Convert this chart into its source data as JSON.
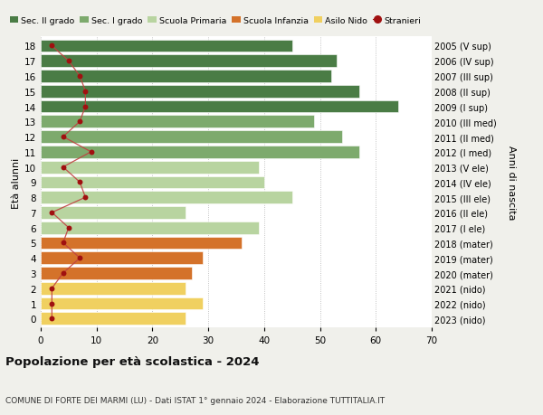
{
  "ages": [
    18,
    17,
    16,
    15,
    14,
    13,
    12,
    11,
    10,
    9,
    8,
    7,
    6,
    5,
    4,
    3,
    2,
    1,
    0
  ],
  "right_labels": [
    "2005 (V sup)",
    "2006 (IV sup)",
    "2007 (III sup)",
    "2008 (II sup)",
    "2009 (I sup)",
    "2010 (III med)",
    "2011 (II med)",
    "2012 (I med)",
    "2013 (V ele)",
    "2014 (IV ele)",
    "2015 (III ele)",
    "2016 (II ele)",
    "2017 (I ele)",
    "2018 (mater)",
    "2019 (mater)",
    "2020 (mater)",
    "2021 (nido)",
    "2022 (nido)",
    "2023 (nido)"
  ],
  "bar_values": [
    45,
    53,
    52,
    57,
    64,
    49,
    54,
    57,
    39,
    40,
    45,
    26,
    39,
    36,
    29,
    27,
    26,
    29,
    26
  ],
  "stranieri_values": [
    2,
    5,
    7,
    8,
    8,
    7,
    4,
    9,
    4,
    7,
    8,
    2,
    5,
    4,
    7,
    4,
    2,
    2,
    2
  ],
  "bar_colors": [
    "#4a7c45",
    "#4a7c45",
    "#4a7c45",
    "#4a7c45",
    "#4a7c45",
    "#7daa6d",
    "#7daa6d",
    "#7daa6d",
    "#b8d4a0",
    "#b8d4a0",
    "#b8d4a0",
    "#b8d4a0",
    "#b8d4a0",
    "#d4722a",
    "#d4722a",
    "#d4722a",
    "#f0d060",
    "#f0d060",
    "#f0d060"
  ],
  "stranieri_color": "#a01010",
  "stranieri_line_color": "#c04040",
  "legend_items": [
    {
      "label": "Sec. II grado",
      "color": "#4a7c45"
    },
    {
      "label": "Sec. I grado",
      "color": "#7daa6d"
    },
    {
      "label": "Scuola Primaria",
      "color": "#b8d4a0"
    },
    {
      "label": "Scuola Infanzia",
      "color": "#d4722a"
    },
    {
      "label": "Asilo Nido",
      "color": "#f0d060"
    },
    {
      "label": "Stranieri",
      "color": "#a01010"
    }
  ],
  "xlabel_left": "Età alunni",
  "xlabel_right": "Anni di nascita",
  "title": "Popolazione per età scolastica - 2024",
  "subtitle": "COMUNE DI FORTE DEI MARMI (LU) - Dati ISTAT 1° gennaio 2024 - Elaborazione TUTTITALIA.IT",
  "xlim": [
    0,
    70
  ],
  "xticks": [
    0,
    10,
    20,
    30,
    40,
    50,
    60,
    70
  ],
  "bg_color": "#f0f0eb",
  "plot_bg_color": "#ffffff"
}
